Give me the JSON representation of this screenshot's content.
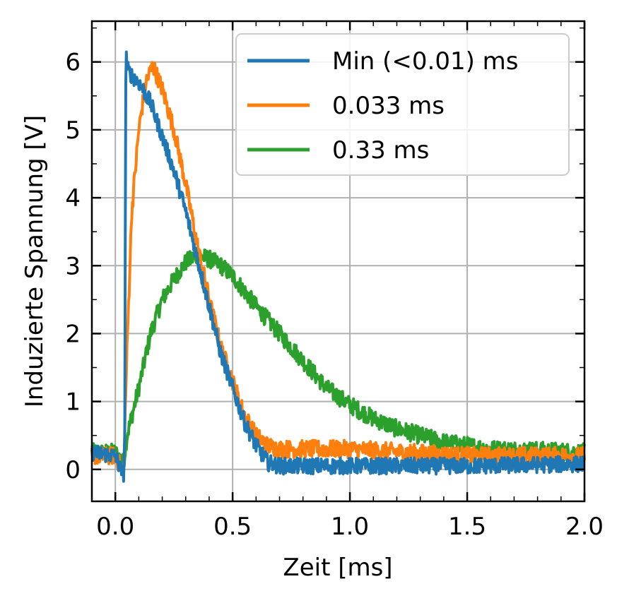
{
  "chart_data": {
    "type": "line",
    "xlabel": "Zeit [ms]",
    "ylabel": "Induzierte Spannung [V]",
    "xlim": [
      -0.1,
      2.0
    ],
    "ylim": [
      -0.47,
      6.6
    ],
    "xticks": [
      0.0,
      0.5,
      1.0,
      1.5,
      2.0
    ],
    "xtick_labels": [
      "0.0",
      "0.5",
      "1.0",
      "1.5",
      "2.0"
    ],
    "yticks": [
      0,
      1,
      2,
      3,
      4,
      5,
      6
    ],
    "ytick_labels": [
      "0",
      "1",
      "2",
      "3",
      "4",
      "5",
      "6"
    ],
    "grid": true,
    "legend_position": "top-right",
    "series": [
      {
        "name": "Min (<0.01) ms",
        "color": "#1f77b4",
        "x": [
          -0.1,
          0.0,
          0.035,
          0.04,
          0.045,
          0.05,
          0.07,
          0.1,
          0.15,
          0.2,
          0.25,
          0.3,
          0.35,
          0.4,
          0.45,
          0.5,
          0.55,
          0.6,
          0.65,
          0.7,
          0.8,
          1.0,
          1.5,
          2.0
        ],
        "y": [
          0.25,
          0.2,
          -0.1,
          0.5,
          6.2,
          5.9,
          5.8,
          5.7,
          5.4,
          4.9,
          4.4,
          3.8,
          3.1,
          2.4,
          1.7,
          1.2,
          0.7,
          0.35,
          0.1,
          0.05,
          0.05,
          0.05,
          0.05,
          0.08
        ],
        "noise": 0.12
      },
      {
        "name": "0.033 ms",
        "color": "#ff7f0e",
        "x": [
          -0.1,
          0.0,
          0.035,
          0.05,
          0.07,
          0.1,
          0.13,
          0.16,
          0.2,
          0.25,
          0.3,
          0.35,
          0.4,
          0.45,
          0.5,
          0.55,
          0.6,
          0.65,
          0.7,
          0.8,
          1.0,
          1.5,
          2.0
        ],
        "y": [
          0.2,
          0.2,
          -0.05,
          1.8,
          3.8,
          5.0,
          5.7,
          5.95,
          5.6,
          5.0,
          4.2,
          3.3,
          2.5,
          1.8,
          1.3,
          0.8,
          0.5,
          0.35,
          0.3,
          0.3,
          0.3,
          0.2,
          0.2
        ],
        "noise": 0.13
      },
      {
        "name": "0.33 ms",
        "color": "#2ca02c",
        "x": [
          -0.1,
          0.0,
          0.035,
          0.05,
          0.1,
          0.15,
          0.2,
          0.25,
          0.3,
          0.35,
          0.4,
          0.45,
          0.5,
          0.6,
          0.7,
          0.8,
          0.9,
          1.0,
          1.1,
          1.2,
          1.3,
          1.4,
          1.5,
          1.6,
          1.8,
          2.0
        ],
        "y": [
          0.25,
          0.25,
          0.1,
          0.5,
          1.2,
          2.0,
          2.5,
          2.8,
          3.05,
          3.15,
          3.1,
          3.0,
          2.85,
          2.4,
          2.0,
          1.6,
          1.2,
          0.95,
          0.75,
          0.6,
          0.5,
          0.4,
          0.35,
          0.3,
          0.28,
          0.25
        ],
        "noise": 0.13
      }
    ]
  }
}
